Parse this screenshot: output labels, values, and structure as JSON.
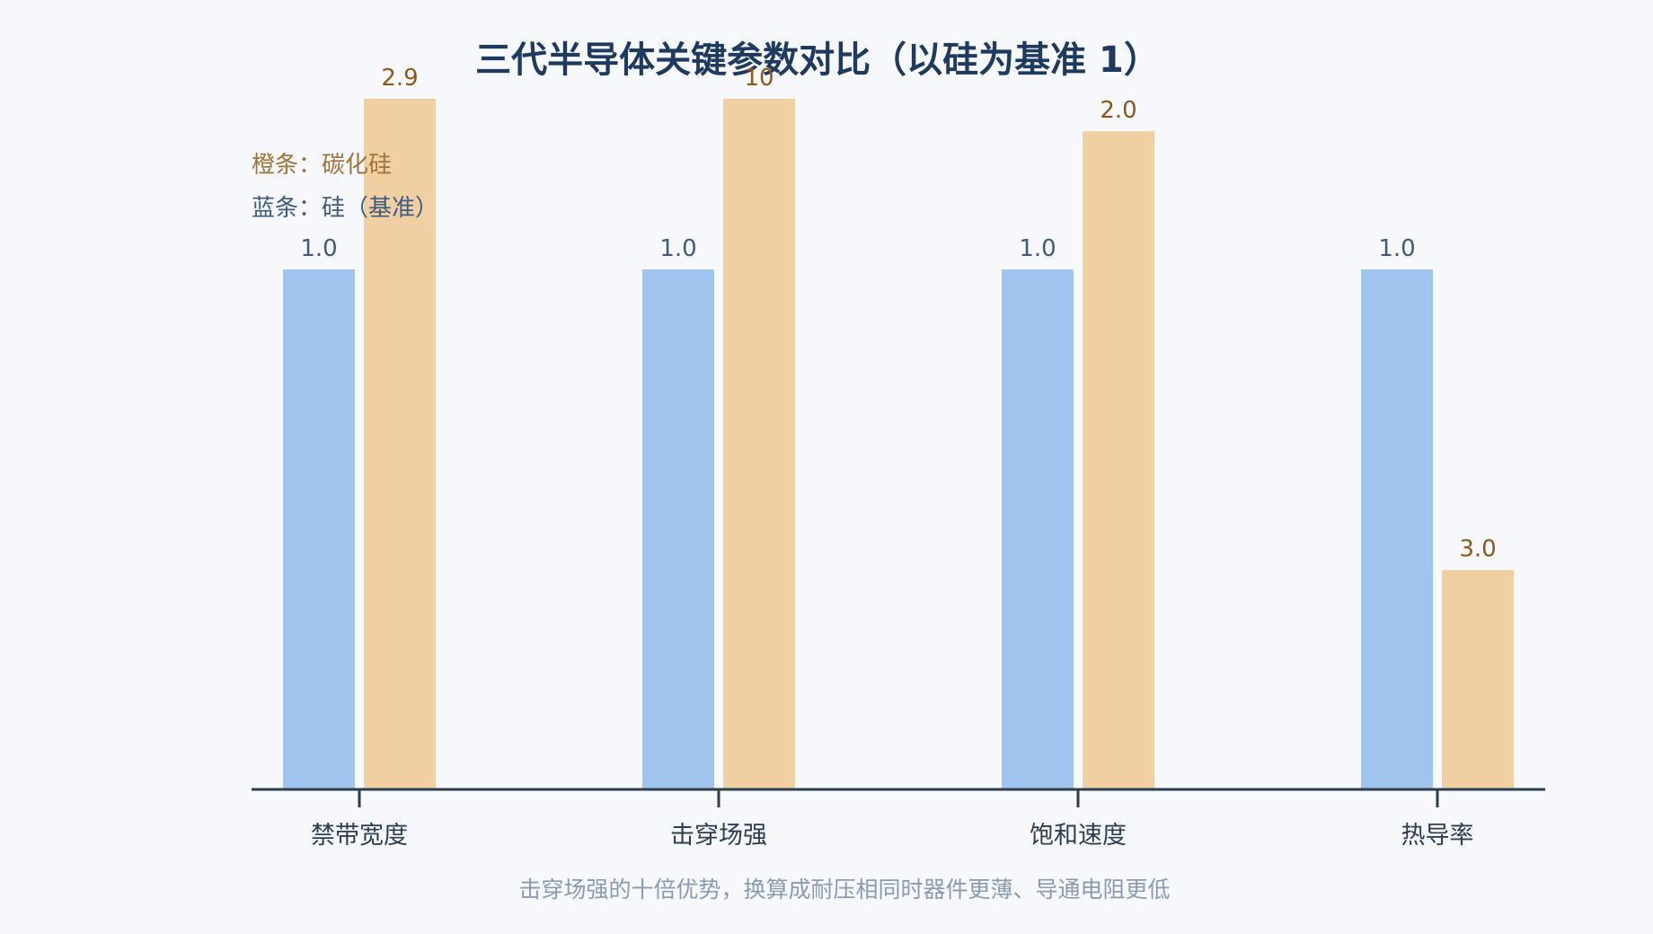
{
  "chart_data": {
    "type": "bar",
    "title": "三代半导体关键参数对比（以硅为基准 1）",
    "categories": [
      "禁带宽度",
      "击穿场强",
      "饱和速度",
      "热导率"
    ],
    "series": [
      {
        "name": "硅（基准）",
        "values": [
          1.0,
          1.0,
          1.0,
          1.0
        ],
        "labels": [
          "1.0",
          "1.0",
          "1.0",
          "1.0"
        ],
        "color": "#a0c4ed",
        "label_color": "#3d5a80"
      },
      {
        "name": "碳化硅",
        "values": [
          2.9,
          10,
          2.0,
          3.0
        ],
        "labels": [
          "2.9",
          "10",
          "2.0",
          "3.0"
        ],
        "color": "#f0d0a2",
        "label_color": "#8b5a1b"
      }
    ],
    "legend": {
      "orange": "橙条：碳化硅",
      "blue": "蓝条：硅（基准）",
      "placement": "top-left"
    },
    "note": "击穿场强的十倍优势，换算成耐压相同时器件更薄、导通电阻更低",
    "xlabel": "",
    "ylabel": "",
    "grid": false,
    "axis_color": "#2c3e50"
  }
}
